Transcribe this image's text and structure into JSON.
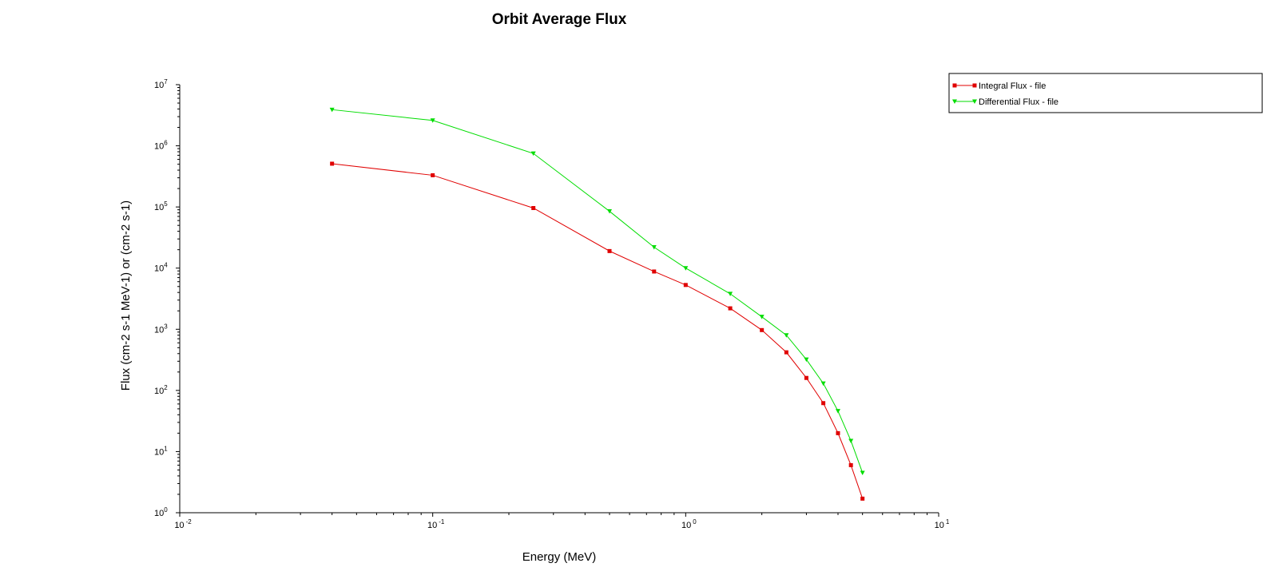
{
  "chart_data": {
    "type": "line",
    "title": "Orbit Average Flux",
    "xlabel": "Energy (MeV)",
    "ylabel": "Flux (cm-2 s-1 MeV-1) or (cm-2 s-1)",
    "xscale": "log",
    "yscale": "log",
    "xlim": [
      0.01,
      10
    ],
    "ylim": [
      1,
      10000000
    ],
    "x_ticks": [
      {
        "base": "10",
        "exp": "-2",
        "value": 0.01
      },
      {
        "base": "10",
        "exp": "-1",
        "value": 0.1
      },
      {
        "base": "10",
        "exp": "0",
        "value": 1
      },
      {
        "base": "10",
        "exp": "1",
        "value": 10
      }
    ],
    "y_ticks": [
      {
        "base": "10",
        "exp": "0",
        "value": 1
      },
      {
        "base": "10",
        "exp": "1",
        "value": 10
      },
      {
        "base": "10",
        "exp": "2",
        "value": 100
      },
      {
        "base": "10",
        "exp": "3",
        "value": 1000
      },
      {
        "base": "10",
        "exp": "4",
        "value": 10000
      },
      {
        "base": "10",
        "exp": "5",
        "value": 100000
      },
      {
        "base": "10",
        "exp": "6",
        "value": 1000000
      },
      {
        "base": "10",
        "exp": "7",
        "value": 10000000
      }
    ],
    "grid": false,
    "legend_position": "top-right",
    "series": [
      {
        "name": "Integral Flux - file",
        "color": "#e00000",
        "marker": "square",
        "x": [
          0.04,
          0.1,
          0.25,
          0.5,
          0.75,
          1.0,
          1.5,
          2.0,
          2.5,
          3.0,
          3.5,
          4.0,
          4.5,
          5.0
        ],
        "y": [
          510000,
          330000,
          96000,
          19000,
          8800,
          5300,
          2200,
          970,
          420,
          160,
          62,
          20,
          6,
          1.7
        ]
      },
      {
        "name": "Differential Flux - file",
        "color": "#00dd00",
        "marker": "triangle-down",
        "x": [
          0.04,
          0.1,
          0.25,
          0.5,
          0.75,
          1.0,
          1.5,
          2.0,
          2.5,
          3.0,
          3.5,
          4.0,
          4.5,
          5.0
        ],
        "y": [
          3900000,
          2600000,
          750000,
          85000,
          22000,
          10000,
          3800,
          1600,
          800,
          320,
          130,
          46,
          15,
          4.5
        ]
      }
    ]
  }
}
